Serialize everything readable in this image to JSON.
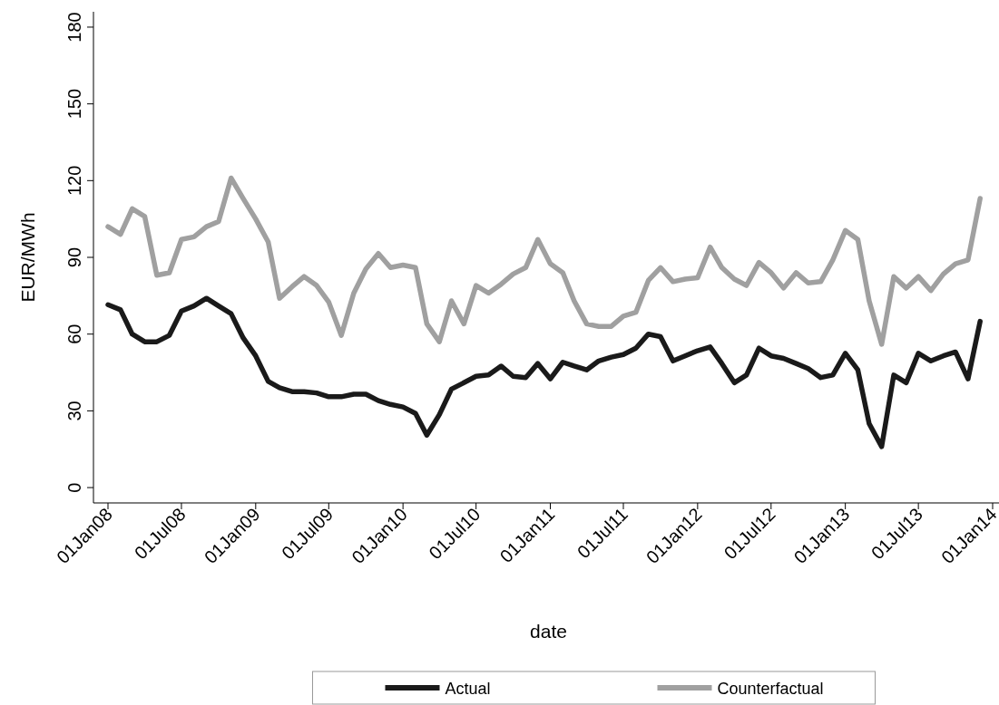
{
  "chart_data": {
    "type": "line",
    "xlabel": "date",
    "ylabel": "EUR/MWh",
    "x": [
      "2008-01",
      "2008-02",
      "2008-03",
      "2008-04",
      "2008-05",
      "2008-06",
      "2008-07",
      "2008-08",
      "2008-09",
      "2008-10",
      "2008-11",
      "2008-12",
      "2009-01",
      "2009-02",
      "2009-03",
      "2009-04",
      "2009-05",
      "2009-06",
      "2009-07",
      "2009-08",
      "2009-09",
      "2009-10",
      "2009-11",
      "2009-12",
      "2010-01",
      "2010-02",
      "2010-03",
      "2010-04",
      "2010-05",
      "2010-06",
      "2010-07",
      "2010-08",
      "2010-09",
      "2010-10",
      "2010-11",
      "2010-12",
      "2011-01",
      "2011-02",
      "2011-03",
      "2011-04",
      "2011-05",
      "2011-06",
      "2011-07",
      "2011-08",
      "2011-09",
      "2011-10",
      "2011-11",
      "2011-12",
      "2012-01",
      "2012-02",
      "2012-03",
      "2012-04",
      "2012-05",
      "2012-06",
      "2012-07",
      "2012-08",
      "2012-09",
      "2012-10",
      "2012-11",
      "2012-12",
      "2013-01",
      "2013-02",
      "2013-03",
      "2013-04",
      "2013-05",
      "2013-06",
      "2013-07",
      "2013-08",
      "2013-09",
      "2013-10",
      "2013-11",
      "2013-12"
    ],
    "series": [
      {
        "name": "Actual",
        "color": "#1a1a1a",
        "values": [
          71.5,
          69.5,
          60,
          57,
          57,
          59.5,
          69,
          71,
          74,
          71,
          68,
          58.5,
          51.5,
          41.5,
          39,
          37.5,
          37.5,
          37,
          35.5,
          35.5,
          36.5,
          36.5,
          34,
          32.5,
          31.5,
          29,
          20.5,
          28.5,
          38.5,
          41,
          43.5,
          44,
          47.5,
          43.5,
          43,
          48.5,
          42.5,
          49,
          47.5,
          46,
          49.5,
          51,
          52,
          54.5,
          60,
          59,
          49.5,
          51.5,
          53.5,
          55,
          48.5,
          41,
          44,
          54.5,
          51.5,
          50.5,
          48.5,
          46.5,
          43,
          44,
          52.5,
          46,
          25,
          16,
          44,
          41,
          52.5,
          49.5,
          51.5,
          53,
          42.5,
          65
        ]
      },
      {
        "name": "Counterfactual",
        "color": "#a0a0a0",
        "values": [
          102,
          99,
          109,
          106,
          83,
          84,
          97,
          98,
          102,
          104,
          121,
          113,
          105,
          96,
          74,
          78.5,
          82.5,
          79,
          72.5,
          59.5,
          76,
          85.5,
          91.5,
          86,
          87,
          86,
          64,
          57,
          73,
          64,
          79,
          76,
          79.5,
          83.5,
          86,
          97,
          87.5,
          84,
          73,
          64,
          63,
          63,
          67,
          68.5,
          81,
          86,
          80.5,
          81.5,
          82,
          94,
          86,
          81.5,
          79,
          88,
          84,
          78,
          84,
          80,
          80.5,
          89,
          100.5,
          97,
          73,
          56,
          82.5,
          78,
          82.5,
          77,
          83.5,
          87.5,
          89,
          113
        ]
      }
    ],
    "xlim": [
      "2007-11-26",
      "2014-01-28"
    ],
    "xticks": [
      {
        "value": "2008-01-01",
        "label": "01Jan08"
      },
      {
        "value": "2008-07-01",
        "label": "01Jul08"
      },
      {
        "value": "2009-01-01",
        "label": "01Jan09"
      },
      {
        "value": "2009-07-01",
        "label": "01Jul09"
      },
      {
        "value": "2010-01-01",
        "label": "01Jan10"
      },
      {
        "value": "2010-07-01",
        "label": "01Jul10"
      },
      {
        "value": "2011-01-01",
        "label": "01Jan11"
      },
      {
        "value": "2011-07-01",
        "label": "01Jul11"
      },
      {
        "value": "2012-01-01",
        "label": "01Jan12"
      },
      {
        "value": "2012-07-01",
        "label": "01Jul12"
      },
      {
        "value": "2013-01-01",
        "label": "01Jan13"
      },
      {
        "value": "2013-07-01",
        "label": "01Jul13"
      },
      {
        "value": "2014-01-01",
        "label": "01Jan14"
      }
    ],
    "ylim": [
      -6,
      186
    ],
    "yticks": [
      0,
      30,
      60,
      90,
      120,
      150,
      180
    ],
    "grid": false,
    "legend": "bottom",
    "marker": "none",
    "line_style": "solid"
  }
}
